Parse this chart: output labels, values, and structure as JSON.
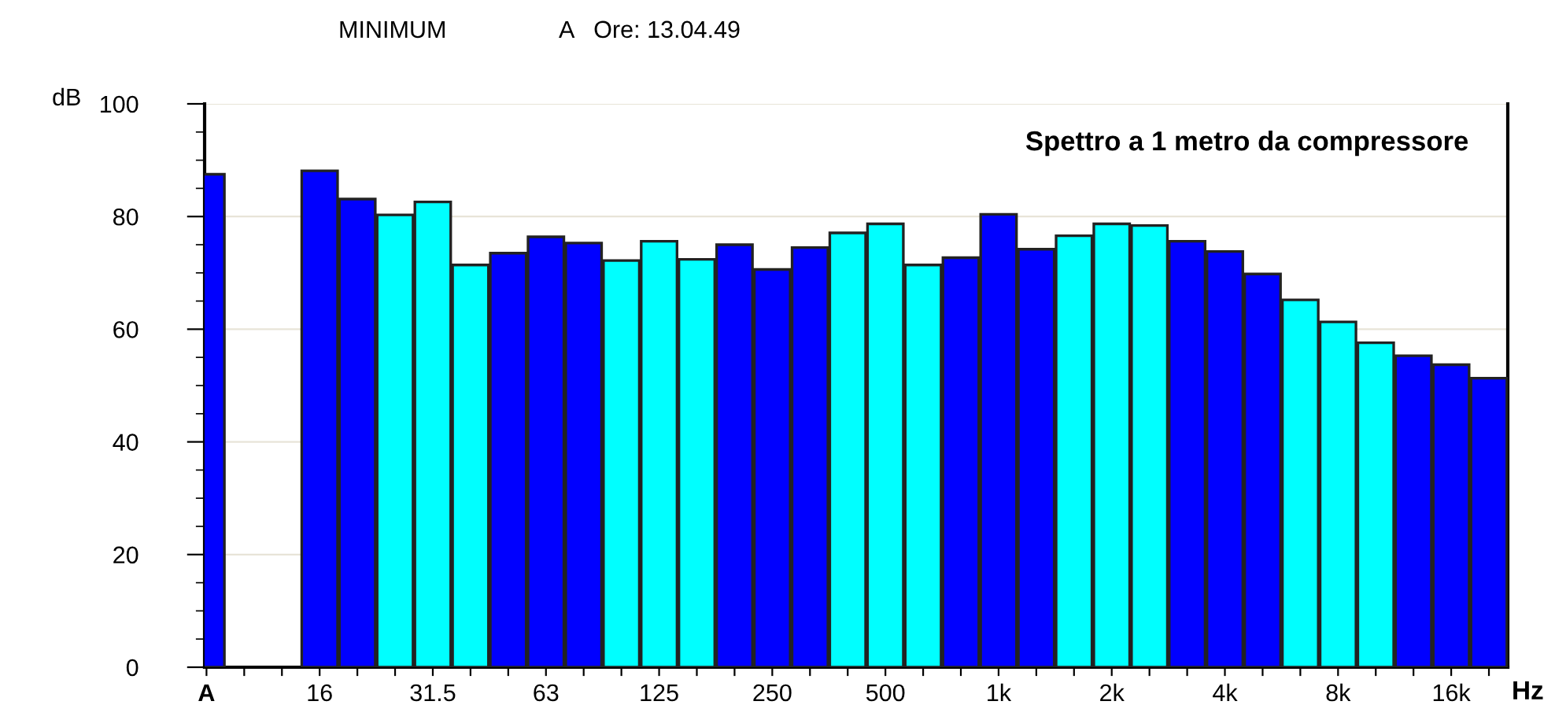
{
  "chart_data": {
    "type": "bar",
    "title": "Spettro a 1 metro da compressore",
    "ylabel": "dB",
    "xlabel": "Hz",
    "annotations": [
      "MINIMUM",
      "A   Ore: 13.04.49"
    ],
    "categories": [
      "A",
      null,
      null,
      "16",
      null,
      null,
      "31.5",
      null,
      null,
      "63",
      null,
      null,
      "125",
      null,
      null,
      "250",
      null,
      null,
      "500",
      null,
      null,
      "1k",
      null,
      null,
      "2k",
      null,
      null,
      "4k",
      null,
      null,
      "8k",
      null,
      null,
      "16k",
      null
    ],
    "values": [
      87.5,
      null,
      null,
      88.1,
      83.1,
      80.3,
      82.6,
      71.4,
      73.5,
      76.4,
      75.3,
      72.2,
      75.6,
      72.4,
      75.0,
      70.6,
      74.5,
      77.1,
      78.7,
      71.4,
      72.7,
      80.4,
      74.2,
      76.6,
      78.7,
      78.4,
      75.6,
      73.8,
      69.8,
      65.2,
      61.3,
      57.6,
      55.3,
      53.7,
      51.3
    ],
    "colors": [
      "#0000ff",
      null,
      null,
      "#0000ff",
      "#0000ff",
      "#00ffff",
      "#00ffff",
      "#00ffff",
      "#0000ff",
      "#0000ff",
      "#0000ff",
      "#00ffff",
      "#00ffff",
      "#00ffff",
      "#0000ff",
      "#0000ff",
      "#0000ff",
      "#00ffff",
      "#00ffff",
      "#00ffff",
      "#0000ff",
      "#0000ff",
      "#0000ff",
      "#00ffff",
      "#00ffff",
      "#00ffff",
      "#0000ff",
      "#0000ff",
      "#0000ff",
      "#00ffff",
      "#00ffff",
      "#00ffff",
      "#0000ff",
      "#0000ff",
      "#0000ff"
    ],
    "ylim": [
      0,
      100
    ],
    "yticks": [
      0,
      20,
      40,
      60,
      80,
      100
    ],
    "grid": "y"
  }
}
